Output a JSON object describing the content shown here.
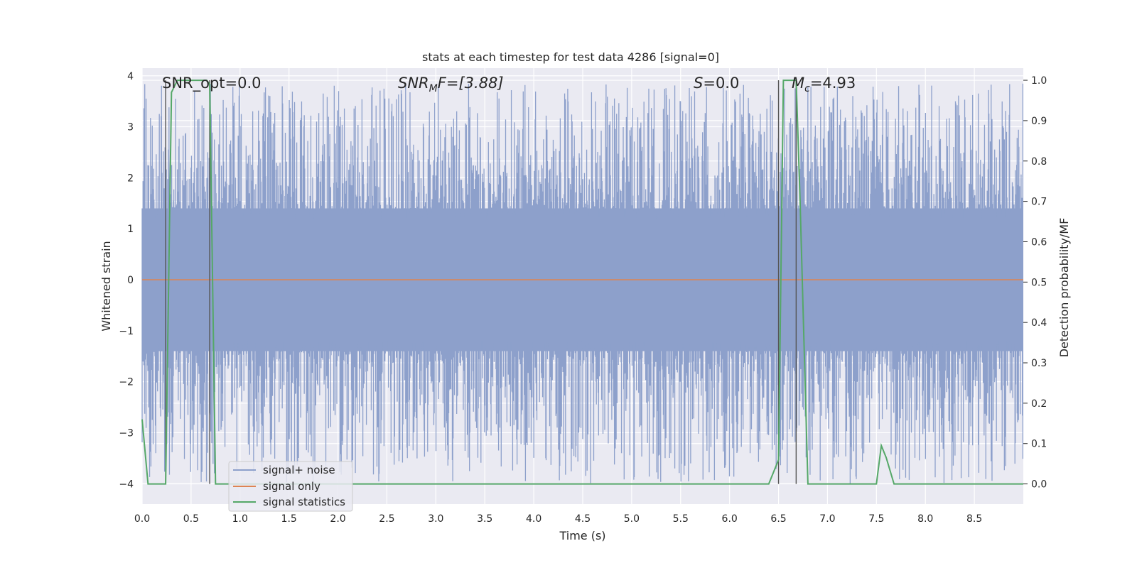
{
  "chart_data": {
    "type": "line",
    "title": "stats at each timestep for test data 4286 [signal=0]",
    "xlabel": "Time (s)",
    "ylabel": "Whitened strain",
    "y2label": "Detection probability/MF",
    "xlim": [
      0.0,
      9.0
    ],
    "ylim": [
      -4.4,
      4.15
    ],
    "y2lim": [
      -0.05,
      1.03
    ],
    "xticks": [
      "0.0",
      "0.5",
      "1.0",
      "1.5",
      "2.0",
      "2.5",
      "3.0",
      "3.5",
      "4.0",
      "4.5",
      "5.0",
      "5.5",
      "6.0",
      "6.5",
      "7.0",
      "7.5",
      "8.0",
      "8.5"
    ],
    "yticks": [
      "4",
      "3",
      "2",
      "1",
      "0",
      "−1",
      "−2",
      "−3",
      "−4"
    ],
    "y2ticks": [
      "1.0",
      "0.9",
      "0.8",
      "0.7",
      "0.6",
      "0.5",
      "0.4",
      "0.3",
      "0.2",
      "0.1",
      "0.0"
    ],
    "grid": true,
    "legend_position": "lower-left",
    "legend": [
      "signal+ noise",
      "signal only",
      "signal statistics"
    ],
    "colors": {
      "noise": "#8da0cb",
      "signal": "#dd8452",
      "stats": "#55a868",
      "marker_lines": "#555555",
      "background": "#eaeaf2"
    },
    "annotations": {
      "snr_opt": "SNR_opt=0.0",
      "snr_mf_prefix": "SNR",
      "snr_mf_sub": "M",
      "snr_mf_suffix": "F=[3.88]",
      "s_prefix": "S",
      "s_suffix": "=0.0",
      "mc_prefix": "M",
      "mc_sub": "c",
      "mc_suffix": "=4.93"
    },
    "marker_times": [
      0.24,
      0.69,
      6.5,
      6.68
    ],
    "noise_envelope": {
      "typical_upper": 1.8,
      "typical_lower": -1.8,
      "max_peak": 3.85,
      "min_peak": -4.0
    },
    "signal_only": {
      "x": [
        0.0,
        9.0
      ],
      "y": [
        0.0,
        0.0
      ]
    },
    "series": [
      {
        "name": "signal statistics",
        "x": [
          0.0,
          0.06,
          0.12,
          0.24,
          0.3,
          0.36,
          0.48,
          0.66,
          0.69,
          0.75,
          0.85,
          1.0,
          6.4,
          6.5,
          6.55,
          6.6,
          6.68,
          6.72,
          6.8,
          7.0,
          7.5,
          7.55,
          7.6,
          7.68,
          9.0
        ],
        "y": [
          0.16,
          0.0,
          0.0,
          0.0,
          0.97,
          1.0,
          1.0,
          1.0,
          0.99,
          0.0,
          0.0,
          0.0,
          0.0,
          0.06,
          1.0,
          1.0,
          1.0,
          0.7,
          0.0,
          0.0,
          0.0,
          0.095,
          0.065,
          0.0,
          0.0
        ]
      }
    ]
  }
}
